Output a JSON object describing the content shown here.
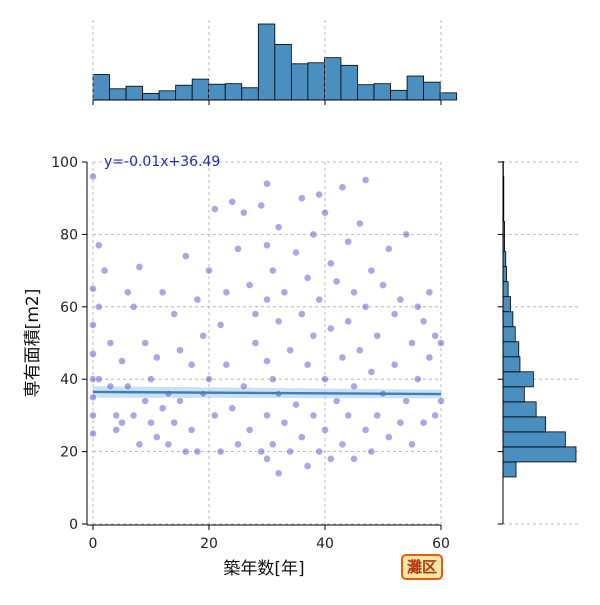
{
  "chart_data": {
    "type": "scatter",
    "title": "",
    "xlabel": "築年数[年]",
    "ylabel": "専有面積[m2]",
    "xlim": [
      0,
      60
    ],
    "ylim": [
      0,
      100
    ],
    "x_ticks": [
      0,
      20,
      40,
      60
    ],
    "y_ticks": [
      0,
      20,
      40,
      60,
      80,
      100
    ],
    "grid": true,
    "regression": {
      "equation_label": "y=-0.01x+36.49",
      "slope": -0.01,
      "intercept": 36.49,
      "line_color": "#3b7fbf",
      "ci_color": "#a9cce8"
    },
    "point_color": "#3f3fcf",
    "series": [
      {
        "points": [
          [
            0,
            96
          ],
          [
            0,
            65
          ],
          [
            0,
            55
          ],
          [
            0,
            47
          ],
          [
            0,
            40
          ],
          [
            0,
            35
          ],
          [
            0,
            30
          ],
          [
            0,
            25
          ],
          [
            1,
            77
          ],
          [
            1,
            60
          ],
          [
            1,
            40
          ],
          [
            2,
            70
          ],
          [
            3,
            50
          ],
          [
            3,
            38
          ],
          [
            4,
            30
          ],
          [
            4,
            26
          ],
          [
            5,
            28
          ],
          [
            5,
            45
          ],
          [
            6,
            64
          ],
          [
            6,
            38
          ],
          [
            7,
            60
          ],
          [
            7,
            30
          ],
          [
            8,
            71
          ],
          [
            8,
            22
          ],
          [
            9,
            50
          ],
          [
            9,
            34
          ],
          [
            10,
            28
          ],
          [
            10,
            40
          ],
          [
            11,
            46
          ],
          [
            11,
            24
          ],
          [
            12,
            64
          ],
          [
            12,
            32
          ],
          [
            13,
            36
          ],
          [
            13,
            22
          ],
          [
            14,
            58
          ],
          [
            14,
            28
          ],
          [
            15,
            48
          ],
          [
            15,
            34
          ],
          [
            16,
            74
          ],
          [
            16,
            20
          ],
          [
            17,
            44
          ],
          [
            17,
            26
          ],
          [
            18,
            62
          ],
          [
            18,
            20
          ],
          [
            19,
            52
          ],
          [
            19,
            36
          ],
          [
            20,
            70
          ],
          [
            20,
            40
          ],
          [
            21,
            87
          ],
          [
            21,
            30
          ],
          [
            22,
            55
          ],
          [
            22,
            20
          ],
          [
            23,
            64
          ],
          [
            23,
            44
          ],
          [
            24,
            89
          ],
          [
            24,
            32
          ],
          [
            25,
            76
          ],
          [
            25,
            22
          ],
          [
            26,
            86
          ],
          [
            26,
            38
          ],
          [
            27,
            66
          ],
          [
            27,
            26
          ],
          [
            28,
            58
          ],
          [
            28,
            50
          ],
          [
            29,
            88
          ],
          [
            29,
            20
          ],
          [
            30,
            94
          ],
          [
            30,
            77
          ],
          [
            30,
            62
          ],
          [
            30,
            45
          ],
          [
            30,
            30
          ],
          [
            30,
            18
          ],
          [
            31,
            70
          ],
          [
            31,
            40
          ],
          [
            31,
            22
          ],
          [
            32,
            82
          ],
          [
            32,
            56
          ],
          [
            32,
            36
          ],
          [
            32,
            14
          ],
          [
            33,
            64
          ],
          [
            33,
            28
          ],
          [
            34,
            48
          ],
          [
            34,
            20
          ],
          [
            35,
            75
          ],
          [
            35,
            33
          ],
          [
            36,
            90
          ],
          [
            36,
            58
          ],
          [
            36,
            24
          ],
          [
            37,
            68
          ],
          [
            37,
            44
          ],
          [
            37,
            16
          ],
          [
            38,
            80
          ],
          [
            38,
            52
          ],
          [
            38,
            30
          ],
          [
            39,
            91
          ],
          [
            39,
            62
          ],
          [
            39,
            20
          ],
          [
            40,
            86
          ],
          [
            40,
            40
          ],
          [
            40,
            26
          ],
          [
            41,
            72
          ],
          [
            41,
            54
          ],
          [
            41,
            18
          ],
          [
            42,
            67
          ],
          [
            42,
            34
          ],
          [
            43,
            93
          ],
          [
            43,
            46
          ],
          [
            43,
            22
          ],
          [
            44,
            78
          ],
          [
            44,
            56
          ],
          [
            44,
            30
          ],
          [
            45,
            64
          ],
          [
            45,
            38
          ],
          [
            45,
            18
          ],
          [
            46,
            83
          ],
          [
            46,
            48
          ],
          [
            47,
            95
          ],
          [
            47,
            60
          ],
          [
            47,
            26
          ],
          [
            48,
            70
          ],
          [
            48,
            42
          ],
          [
            48,
            20
          ],
          [
            49,
            52
          ],
          [
            49,
            30
          ],
          [
            50,
            66
          ],
          [
            50,
            36
          ],
          [
            51,
            76
          ],
          [
            51,
            24
          ],
          [
            52,
            58
          ],
          [
            52,
            44
          ],
          [
            53,
            62
          ],
          [
            53,
            28
          ],
          [
            54,
            80
          ],
          [
            54,
            34
          ],
          [
            55,
            50
          ],
          [
            55,
            22
          ],
          [
            56,
            60
          ],
          [
            56,
            40
          ],
          [
            57,
            56
          ],
          [
            57,
            28
          ],
          [
            58,
            64
          ],
          [
            58,
            46
          ],
          [
            59,
            52
          ],
          [
            59,
            30
          ],
          [
            60,
            50
          ],
          [
            60,
            34
          ]
        ]
      }
    ],
    "marginal_x": {
      "bin_start": 0,
      "bin_width": 2.85,
      "counts": [
        5,
        2.2,
        2.7,
        1.3,
        1.8,
        2.9,
        4.1,
        3.1,
        3.2,
        2.4,
        14.9,
        10.9,
        7.1,
        7.3,
        8.3,
        6.8,
        3.0,
        3.2,
        1.9,
        4.7,
        3.5,
        1.4
      ]
    },
    "marginal_y": {
      "bin_start": 13,
      "bin_width": 4.15,
      "counts": [
        3.3,
        18.5,
        15.8,
        10.8,
        8.4,
        5.4,
        7.7,
        4.3,
        4.0,
        3.1,
        2.5,
        1.9,
        1.3,
        0.9,
        0.7,
        0.4,
        0.4,
        0.2,
        0.2,
        0.2,
        0.1
      ]
    },
    "histogram_color": "#4a8fc0"
  },
  "badge": {
    "text": "灘区"
  }
}
